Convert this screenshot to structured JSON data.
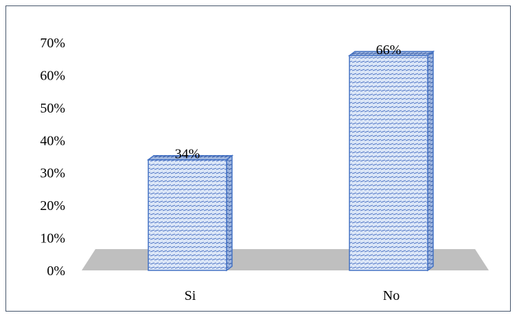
{
  "chart_data": {
    "type": "bar",
    "categories": [
      "Si",
      "No"
    ],
    "values": [
      34,
      66
    ],
    "data_labels": [
      "34%",
      "66%"
    ],
    "y_ticks": [
      "0%",
      "10%",
      "20%",
      "30%",
      "40%",
      "50%",
      "60%",
      "70%"
    ],
    "ylim": [
      0,
      70
    ],
    "title": "",
    "xlabel": "",
    "ylabel": "",
    "grid": false,
    "legend": "none",
    "style": "3d-column",
    "colors": {
      "bar_fill": "#dbe6f7",
      "bar_hatch": "#4a72c4",
      "bar_edge": "#4472c4",
      "floor": "#bfbfbf",
      "frame": "#44546a"
    }
  }
}
